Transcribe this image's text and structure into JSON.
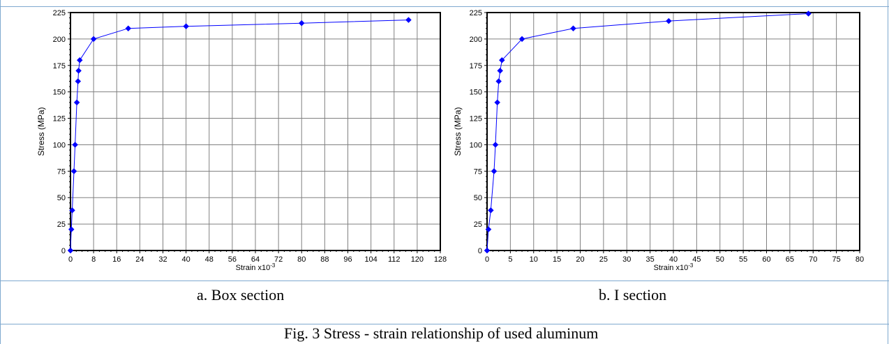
{
  "chart_data": [
    {
      "type": "line",
      "title": "",
      "xlabel": "Strain x10",
      "xlabel_sup": "-3",
      "ylabel": "Stress (MPa)",
      "xlim": [
        0,
        128
      ],
      "ylim": [
        0,
        225
      ],
      "xticks": [
        0,
        8,
        16,
        24,
        32,
        40,
        48,
        56,
        64,
        72,
        80,
        88,
        96,
        104,
        112,
        120,
        128
      ],
      "yticks": [
        0,
        25,
        50,
        75,
        100,
        125,
        150,
        175,
        200,
        225
      ],
      "grid": true,
      "series_color": "#0000ff",
      "marker": "diamond",
      "x": [
        0,
        0.3,
        0.6,
        1.2,
        1.6,
        2.2,
        2.6,
        2.8,
        3.2,
        8,
        20,
        40,
        80,
        117
      ],
      "y": [
        0,
        20,
        38,
        75,
        100,
        140,
        160,
        170,
        180,
        200,
        210,
        212,
        215,
        218
      ]
    },
    {
      "type": "line",
      "title": "",
      "xlabel": "Strain x10",
      "xlabel_sup": "-3",
      "ylabel": "Stress (MPa)",
      "xlim": [
        0,
        80
      ],
      "ylim": [
        0,
        225
      ],
      "xticks": [
        0,
        5,
        10,
        15,
        20,
        25,
        30,
        35,
        40,
        45,
        50,
        55,
        60,
        65,
        70,
        75,
        80
      ],
      "yticks": [
        0,
        25,
        50,
        75,
        100,
        125,
        150,
        175,
        200,
        225
      ],
      "grid": true,
      "series_color": "#0000ff",
      "marker": "diamond",
      "x": [
        0,
        0.3,
        0.8,
        1.5,
        1.8,
        2.2,
        2.5,
        2.8,
        3.2,
        7.5,
        18.5,
        39,
        69
      ],
      "y": [
        0,
        20,
        38,
        75,
        100,
        140,
        160,
        170,
        180,
        200,
        210,
        217,
        224
      ]
    }
  ],
  "captions": {
    "a": "a.    Box  section",
    "b": "b.  I  section",
    "figure": "Fig.  3  Stress  -  strain  relationship  of  used  aluminum"
  }
}
